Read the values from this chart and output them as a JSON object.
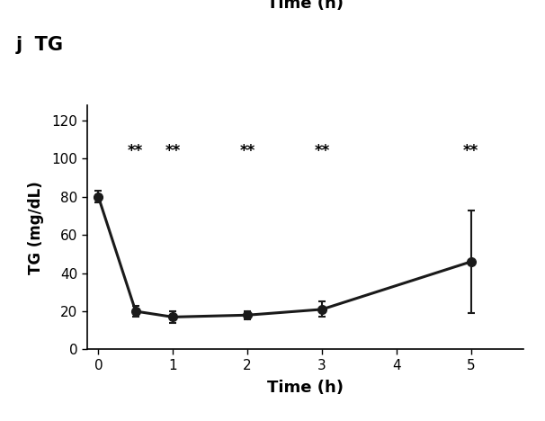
{
  "title_label": "j  TG",
  "x_values": [
    0,
    0.5,
    1,
    2,
    3,
    5
  ],
  "y_values": [
    80,
    20,
    17,
    18,
    21,
    46
  ],
  "y_err": [
    3,
    3,
    3,
    2,
    4,
    27
  ],
  "xlabel": "Time (h)",
  "ylabel": "TG (mg/dL)",
  "xlim": [
    -0.15,
    5.7
  ],
  "ylim": [
    0,
    128
  ],
  "yticks": [
    0,
    20,
    40,
    60,
    80,
    100,
    120
  ],
  "xticks": [
    0,
    1,
    2,
    3,
    4,
    5
  ],
  "significance_positions": [
    0.5,
    1,
    2,
    3,
    5
  ],
  "significance_y": 104,
  "sig_label": "**",
  "line_color": "#1a1a1a",
  "marker_color": "#1a1a1a",
  "marker_size": 7,
  "linewidth": 2.2,
  "capsize": 3,
  "header_text": "Time (h)",
  "background_color": "#ffffff"
}
